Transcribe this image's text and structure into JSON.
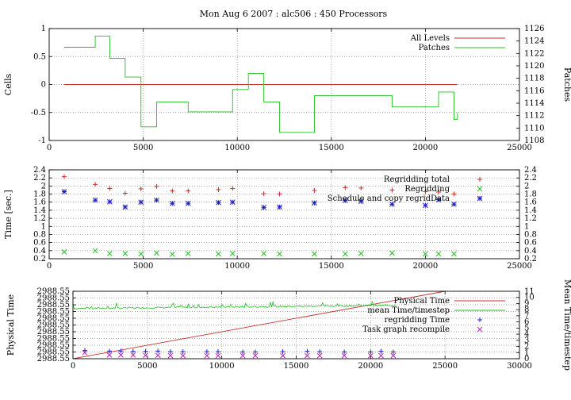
{
  "title": "Mon Aug 6 2007 : alc506 : 450 Processors",
  "colors": {
    "red": "#c43030",
    "green": "#20c020",
    "blue": "#2020c0",
    "magenta": "#c020c0",
    "grid": "#888888"
  },
  "chart_data": [
    {
      "type": "line",
      "ylabel": "Cells",
      "y2label": "Patches",
      "xlim": [
        0,
        25000
      ],
      "ylim": [
        -1,
        1
      ],
      "y2lim": [
        1108,
        1126
      ],
      "xticks": [
        0,
        5000,
        10000,
        15000,
        20000,
        25000
      ],
      "yticks": [
        -1,
        -0.5,
        0,
        0.5,
        1
      ],
      "y2ticks": [
        1108,
        1110,
        1112,
        1114,
        1116,
        1118,
        1120,
        1122,
        1124,
        1126
      ],
      "grid": true,
      "legend": "top-right",
      "series": [
        {
          "name": "All Levels",
          "axis": "left",
          "color": "red",
          "style": "line",
          "x": [
            800,
            21700
          ],
          "y": [
            0,
            0
          ]
        },
        {
          "name": "Patches",
          "axis": "right",
          "color": "green",
          "style": "step",
          "x": [
            800,
            2450,
            3220,
            4040,
            4880,
            5710,
            7390,
            9750,
            10590,
            11410,
            12250,
            14100,
            15740,
            16580,
            18230,
            19890,
            20700,
            21520,
            21700
          ],
          "y": [
            1123,
            1124.8,
            1121.2,
            1118.2,
            1110.2,
            1114.2,
            1112.6,
            1116.2,
            1118.8,
            1114.2,
            1109.3,
            1115.2,
            1115.2,
            1115.2,
            1113.4,
            1113.4,
            1115.8,
            1111.4,
            1112.4
          ]
        }
      ]
    },
    {
      "type": "scatter",
      "ylabel": "Time [sec.]",
      "xlim": [
        0,
        25000
      ],
      "ylim": [
        0.2,
        2.4
      ],
      "xticks": [
        0,
        5000,
        10000,
        15000,
        20000,
        25000
      ],
      "yticks": [
        0.2,
        0.4,
        0.6,
        0.8,
        1,
        1.2,
        1.4,
        1.6,
        1.8,
        2,
        2.2,
        2.4
      ],
      "grid": true,
      "legend": "top-right",
      "series": [
        {
          "name": "Regridding total",
          "color": "red",
          "marker": "plus",
          "x": [
            800,
            2450,
            3220,
            4040,
            4880,
            5710,
            6550,
            7390,
            9000,
            9750,
            11410,
            12250,
            14100,
            15740,
            16580,
            18230,
            20000,
            20700,
            21520
          ],
          "y": [
            2.23,
            2.04,
            1.94,
            1.82,
            1.93,
            1.99,
            1.88,
            1.88,
            1.91,
            1.94,
            1.81,
            1.8,
            1.89,
            1.96,
            1.95,
            1.9,
            1.86,
            1.85,
            1.8
          ]
        },
        {
          "name": "Regridding",
          "color": "green",
          "marker": "x",
          "x": [
            800,
            2450,
            3220,
            4040,
            4880,
            5710,
            6550,
            7390,
            9000,
            9750,
            11410,
            12250,
            14100,
            15740,
            16580,
            18230,
            20000,
            20700,
            21520
          ],
          "y": [
            0.37,
            0.4,
            0.33,
            0.33,
            0.32,
            0.34,
            0.31,
            0.33,
            0.32,
            0.33,
            0.33,
            0.32,
            0.32,
            0.32,
            0.33,
            0.34,
            0.32,
            0.32,
            0.32
          ]
        },
        {
          "name": "Schedule and copy regridData",
          "color": "blue",
          "marker": "star",
          "x": [
            800,
            2450,
            3220,
            4040,
            4880,
            5710,
            6550,
            7390,
            9000,
            9750,
            11410,
            12250,
            14100,
            15740,
            16580,
            18230,
            20000,
            20700,
            21520
          ],
          "y": [
            1.86,
            1.65,
            1.61,
            1.48,
            1.6,
            1.65,
            1.57,
            1.57,
            1.59,
            1.6,
            1.47,
            1.48,
            1.58,
            1.64,
            1.62,
            1.55,
            1.52,
            1.66,
            1.55
          ]
        }
      ]
    },
    {
      "type": "line",
      "ylabel": "Physical Time",
      "y2label": "Mean Time/timestep",
      "xlim": [
        0,
        30000
      ],
      "ylim": [
        0,
        10
      ],
      "y2lim": [
        0,
        11
      ],
      "xticks": [
        0,
        5000,
        10000,
        15000,
        20000,
        25000,
        30000
      ],
      "ytick_labels": [
        "2988.55",
        "2988.55",
        "2988.55",
        "2988.55",
        "2988.55",
        "2988.55",
        "2988.55",
        "2988.55",
        "2988.55",
        "2988.55",
        "2988.55"
      ],
      "y2ticks": [
        0,
        1,
        2,
        3,
        4,
        5,
        6,
        7,
        8,
        9,
        10,
        11
      ],
      "grid": true,
      "legend": "top-right",
      "series": [
        {
          "name": "Physical Time",
          "axis": "left",
          "color": "red",
          "style": "line",
          "x": [
            0,
            25000
          ],
          "y": [
            0,
            10
          ]
        },
        {
          "name": "mean Time/timestep",
          "axis": "right",
          "color": "green",
          "style": "noisy-line",
          "x": [
            0,
            21700
          ],
          "y": [
            8.2,
            8.7
          ]
        },
        {
          "name": "regridding Time",
          "axis": "right",
          "color": "blue",
          "marker": "plus",
          "x": [
            800,
            2450,
            3220,
            4040,
            4880,
            5710,
            6550,
            7390,
            9000,
            9750,
            11410,
            12250,
            14100,
            15740,
            16580,
            18230,
            20000,
            20700,
            21520
          ],
          "y": [
            1.35,
            1.25,
            1.25,
            1.2,
            1.2,
            1.25,
            1.15,
            1.15,
            1.15,
            1.15,
            1.1,
            1.1,
            1.15,
            1.2,
            1.15,
            1.1,
            1.1,
            1.2,
            1.1
          ]
        },
        {
          "name": "Task graph recompile",
          "axis": "right",
          "color": "magenta",
          "marker": "x",
          "x": [
            800,
            2450,
            3220,
            4040,
            4880,
            5710,
            6550,
            7390,
            9000,
            9750,
            11410,
            12250,
            14100,
            15740,
            16580,
            18230,
            20000,
            20700,
            21520
          ],
          "y": [
            1.0,
            0.6,
            0.6,
            0.6,
            0.55,
            0.55,
            0.5,
            0.5,
            0.5,
            0.5,
            0.5,
            0.5,
            0.5,
            0.5,
            0.5,
            0.5,
            0.5,
            0.5,
            0.5
          ]
        }
      ]
    }
  ]
}
